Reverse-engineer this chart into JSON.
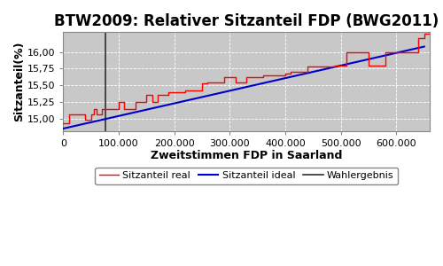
{
  "title": "BTW2009: Relativer Sitzanteil FDP (BWG2011)",
  "xlabel": "Zweitstimmen FDP in Saarland",
  "ylabel": "Sitzanteil(%)",
  "plot_bg_color": "#c8c8c8",
  "fig_bg_color": "#ffffff",
  "wahlergebnis_x": 76000,
  "x_max": 650000,
  "ideal_start_y": 14.855,
  "ideal_end_y": 16.08,
  "yticks": [
    15.0,
    15.25,
    15.5,
    15.75,
    16.0
  ],
  "xticks": [
    0,
    100000,
    200000,
    300000,
    400000,
    500000,
    600000
  ],
  "xlim": [
    0,
    660000
  ],
  "ylim": [
    14.82,
    16.3
  ],
  "step_x": [
    0,
    10000,
    20000,
    30000,
    35000,
    40000,
    50000,
    55000,
    60000,
    70000,
    80000,
    90000,
    100000,
    110000,
    130000,
    150000,
    160000,
    170000,
    190000,
    220000,
    250000,
    260000,
    270000,
    290000,
    310000,
    330000,
    360000,
    380000,
    400000,
    410000,
    420000,
    440000,
    460000,
    480000,
    490000,
    500000,
    510000,
    530000,
    550000,
    570000,
    580000,
    600000,
    620000,
    640000,
    650000,
    660000
  ],
  "step_y": [
    14.93,
    15.07,
    15.07,
    15.07,
    15.07,
    14.99,
    15.07,
    15.15,
    15.07,
    15.15,
    15.15,
    15.15,
    15.25,
    15.15,
    15.25,
    15.36,
    15.25,
    15.36,
    15.4,
    15.42,
    15.53,
    15.55,
    15.55,
    15.63,
    15.55,
    15.63,
    15.65,
    15.65,
    15.67,
    15.7,
    15.7,
    15.78,
    15.78,
    15.78,
    15.8,
    15.8,
    16.0,
    16.0,
    15.8,
    15.8,
    16.0,
    16.0,
    16.0,
    16.2,
    16.27,
    16.27
  ],
  "line_real_color": "#ff0000",
  "line_ideal_color": "#0000cc",
  "line_wahlergebnis_color": "#303030",
  "legend_labels": [
    "Sitzanteil real",
    "Sitzanteil ideal",
    "Wahlergebnis"
  ],
  "title_fontsize": 12,
  "axis_label_fontsize": 9,
  "tick_fontsize": 8,
  "legend_fontsize": 8
}
